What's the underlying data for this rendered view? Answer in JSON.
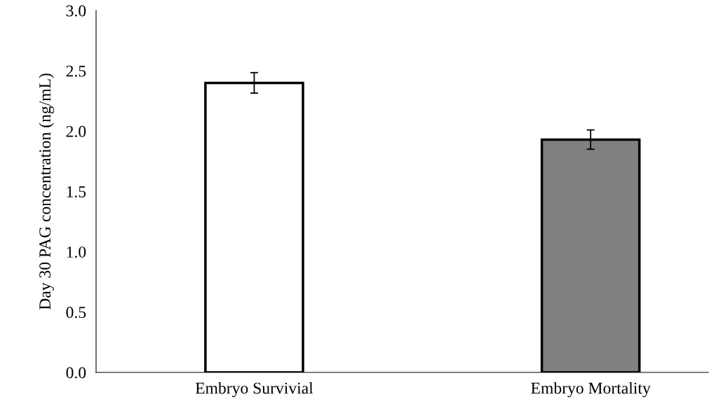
{
  "chart_data": {
    "type": "bar",
    "ylabel": "Day 30 PAG concentration (ng/mL)",
    "categories": [
      "Embryo Survivial",
      "Embryo Mortality"
    ],
    "values": [
      2.4,
      1.93
    ],
    "colors": [
      "#ffffff",
      "#808080"
    ],
    "errors": [
      0.085,
      0.08
    ],
    "ylim": [
      0,
      3
    ],
    "yticks": [
      {
        "value": 0,
        "label": "0.0"
      },
      {
        "value": 0.5,
        "label": "0.5"
      },
      {
        "value": 1,
        "label": "1.0"
      },
      {
        "value": 1.5,
        "label": "1.5"
      },
      {
        "value": 2,
        "label": "2.0"
      },
      {
        "value": 2.5,
        "label": "2.5"
      },
      {
        "value": 3,
        "label": "3.0"
      }
    ],
    "grid": false
  }
}
